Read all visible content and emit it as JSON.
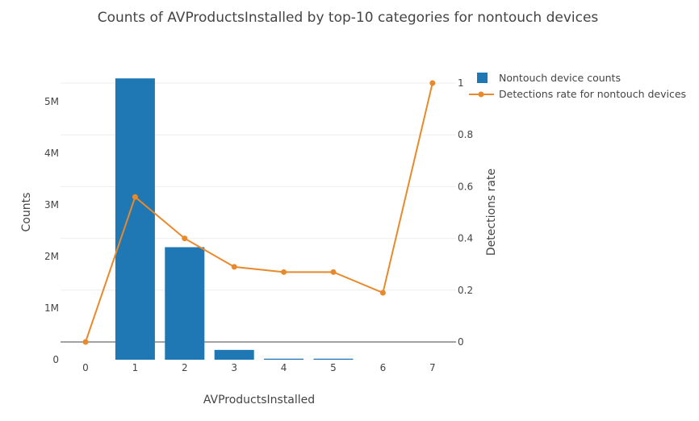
{
  "chart_data": {
    "type": "bar+line",
    "title": "Counts of AVProductsInstalled by top-10 categories for nontouch devices",
    "xlabel": "AVProductsInstalled",
    "ylabel_left": "Counts",
    "ylabel_right": "Detections rate",
    "categories": [
      "0",
      "1",
      "2",
      "3",
      "4",
      "5",
      "6",
      "7"
    ],
    "left_axis": {
      "range": [
        0,
        5.45
      ],
      "ticks": [
        0,
        1,
        2,
        3,
        4,
        5
      ],
      "tick_labels": [
        "0",
        "1M",
        "2M",
        "3M",
        "4M",
        "5M"
      ],
      "unit": "millions"
    },
    "right_axis": {
      "range": [
        -0.07,
        1.0
      ],
      "ticks": [
        0,
        0.2,
        0.4,
        0.6,
        0.8,
        1
      ],
      "tick_labels": [
        "0",
        "0.2",
        "0.4",
        "0.6",
        "0.8",
        "1"
      ]
    },
    "series": [
      {
        "name": "Nontouch device counts",
        "type": "bar",
        "axis": "left",
        "color": "#1f77b4",
        "values": [
          0,
          5.45,
          2.18,
          0.19,
          0.02,
          0.02,
          0,
          0
        ]
      },
      {
        "name": "Detections rate for nontouch devices",
        "type": "line",
        "axis": "right",
        "color": "#e8892b",
        "values": [
          0.0,
          0.56,
          0.4,
          0.29,
          0.27,
          0.27,
          0.19,
          1.0
        ]
      }
    ],
    "legend_position": "top-right",
    "grid": true
  }
}
